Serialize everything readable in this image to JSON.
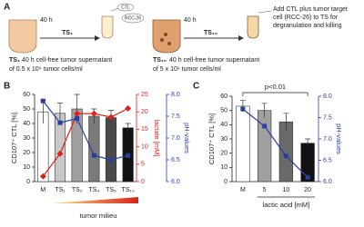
{
  "panel_a": {
    "label": "A",
    "left": {
      "time": "40 h",
      "arrow": "TS₁",
      "ctl": "CTL",
      "rcc": "RCC-26",
      "caption_ts": "TS₁",
      "caption_line1": "40 h cell-free tumor supernatant",
      "caption_line2": "of 0.5 x 10⁶ tumor cells/ml"
    },
    "right": {
      "time": "40 h",
      "arrow": "TS₁₀",
      "caption_ts": "TS₁₀",
      "caption_line1": "40 h cell-free tumor supernatant",
      "caption_line2": "of 5 x 10⁶ tumor cells/ml"
    },
    "note": [
      "Add CTL plus tumor target",
      "cell (RCC-26) to TS for",
      "degranulation and killing"
    ]
  },
  "chart_data": [
    {
      "type": "bar",
      "panel": "B",
      "ylabel": "CD107⁺ CTL [%]",
      "y2label": "lactate [mM]",
      "y3label": "pH-values",
      "xlabel": "tumor milieu",
      "categories": [
        "M",
        "TS₁",
        "TS₂",
        "TS₄",
        "TS₆",
        "TS₁₀"
      ],
      "ylim": [
        0,
        60
      ],
      "yticks": [
        0,
        10,
        20,
        30,
        40,
        50,
        60
      ],
      "y2lim": [
        0,
        25
      ],
      "y2ticks": [
        0,
        5,
        10,
        15,
        20,
        25
      ],
      "y3lim": [
        6,
        8
      ],
      "y3ticks": [
        {
          "value": 6,
          "label": "6.0"
        },
        6.5,
        {
          "value": 7,
          "label": "7.0"
        },
        7.5,
        {
          "value": 8,
          "label": "8.0"
        }
      ],
      "series": [
        {
          "type": "bar",
          "axis": "y",
          "values": [
            48,
            47,
            50,
            45,
            44,
            37
          ],
          "errors": [
            8,
            7,
            10,
            5,
            5,
            3
          ],
          "colors": [
            "#ffffff",
            "#c8c8c8",
            "#a0a0a0",
            "#7a7a7a",
            "#4a4a4a",
            "#111111"
          ]
        },
        {
          "type": "line",
          "axis": "y2",
          "color": "#e0201b",
          "marker": "diamond",
          "values": [
            1.5,
            8,
            19.5,
            19.5,
            18.5,
            21
          ]
        },
        {
          "type": "line",
          "axis": "y3",
          "color": "#2a3f9b",
          "marker": "square",
          "values": [
            7.85,
            7.35,
            7.45,
            6.6,
            6.5,
            6.6
          ]
        }
      ]
    },
    {
      "type": "bar",
      "panel": "C",
      "ylabel": "CD107⁺ CTL [%]",
      "y2label": "pH-values",
      "xlabel": "lactic acid [mM]",
      "annotation": "p<0.01",
      "categories": [
        "M",
        "5",
        "10",
        "20"
      ],
      "ylim": [
        0,
        60
      ],
      "yticks": [
        0,
        10,
        20,
        30,
        40,
        50,
        60
      ],
      "y2lim": [
        6,
        8
      ],
      "y2ticks": [
        {
          "value": 6,
          "label": "6.0"
        },
        6.5,
        {
          "value": 7,
          "label": "7.0"
        },
        7.5,
        {
          "value": 8,
          "label": "8.0"
        }
      ],
      "series": [
        {
          "type": "bar",
          "axis": "y",
          "values": [
            53,
            50,
            42,
            27
          ],
          "errors": [
            4,
            5,
            6,
            3
          ],
          "colors": [
            "#ffffff",
            "#a0a0a0",
            "#6a6a6a",
            "#111111"
          ]
        },
        {
          "type": "line",
          "axis": "y2",
          "color": "#2a3f9b",
          "marker": "square",
          "values": [
            7.7,
            7.3,
            6.6,
            6.1
          ]
        }
      ]
    }
  ]
}
